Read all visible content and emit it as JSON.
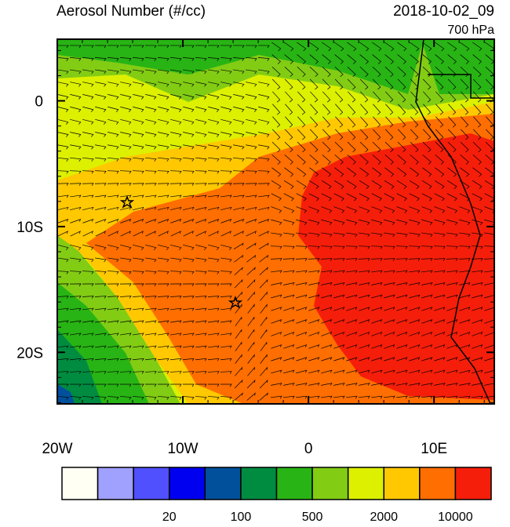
{
  "title": "Aerosol Number (#/cc)",
  "time": "2018-10-02_09",
  "level": "700 hPa",
  "map": {
    "lon_ticks": [
      {
        "value": -20,
        "label": "20W"
      },
      {
        "value": -10,
        "label": "10W"
      },
      {
        "value": 0,
        "label": "0"
      },
      {
        "value": 10,
        "label": "10E"
      }
    ],
    "lat_ticks": [
      {
        "value": 0,
        "label": "0"
      },
      {
        "value": -10,
        "label": "10S"
      },
      {
        "value": -20,
        "label": "20S"
      }
    ],
    "lon_range": [
      -20,
      14.8
    ],
    "lat_range": [
      4.9,
      -24.1
    ]
  },
  "colorbar": {
    "colors": [
      "#fffff4",
      "#a0a0ff",
      "#5050ff",
      "#0000f0",
      "#00509c",
      "#008c40",
      "#28b414",
      "#82cc14",
      "#dcf000",
      "#ffc800",
      "#ff6e00",
      "#f51e0a"
    ],
    "labels": [
      null,
      null,
      "20",
      null,
      "100",
      null,
      "500",
      null,
      "2000",
      null,
      "10000"
    ]
  }
}
